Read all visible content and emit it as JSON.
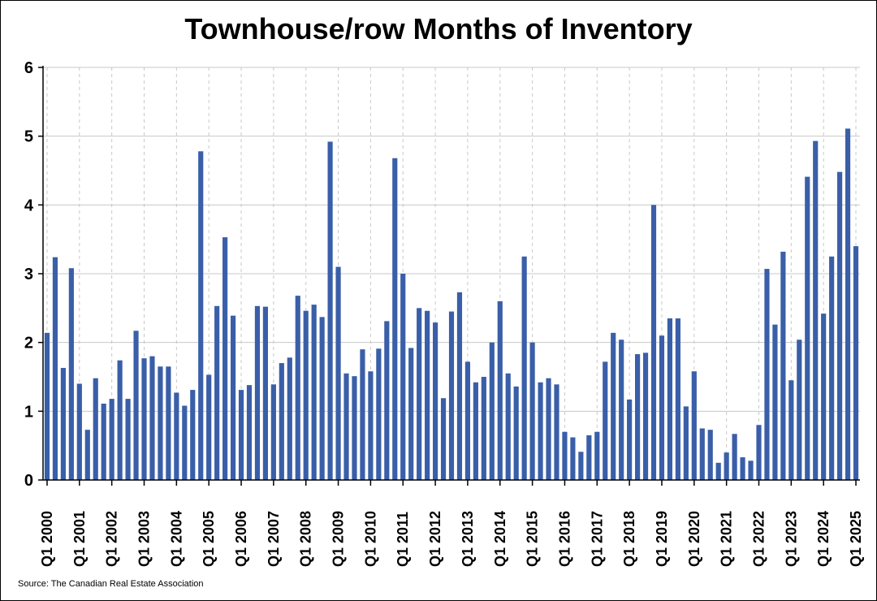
{
  "chart_data": {
    "type": "bar",
    "title": "Townhouse/row Months of Inventory",
    "source": "Source: The Canadian Real Estate Association",
    "xlabel": "",
    "ylabel": "",
    "ylim": [
      0,
      6
    ],
    "yticks": [
      0,
      1,
      2,
      3,
      4,
      5,
      6
    ],
    "grid": true,
    "bar_color": "#3A5FA8",
    "x_tick_labels": [
      "Q1 2000",
      "Q1 2001",
      "Q1 2002",
      "Q1 2003",
      "Q1 2004",
      "Q1 2005",
      "Q1 2006",
      "Q1 2007",
      "Q1 2008",
      "Q1 2009",
      "Q1 2010",
      "Q1 2011",
      "Q1 2012",
      "Q1 2013",
      "Q1 2014",
      "Q1 2015",
      "Q1 2016",
      "Q1 2017",
      "Q1 2018",
      "Q1 2019",
      "Q1 2020",
      "Q1 2021",
      "Q1 2022",
      "Q1 2023",
      "Q1 2024",
      "Q1 2025"
    ],
    "categories": [
      "Q1 2000",
      "Q2 2000",
      "Q3 2000",
      "Q4 2000",
      "Q1 2001",
      "Q2 2001",
      "Q3 2001",
      "Q4 2001",
      "Q1 2002",
      "Q2 2002",
      "Q3 2002",
      "Q4 2002",
      "Q1 2003",
      "Q2 2003",
      "Q3 2003",
      "Q4 2003",
      "Q1 2004",
      "Q2 2004",
      "Q3 2004",
      "Q4 2004",
      "Q1 2005",
      "Q2 2005",
      "Q3 2005",
      "Q4 2005",
      "Q1 2006",
      "Q2 2006",
      "Q3 2006",
      "Q4 2006",
      "Q1 2007",
      "Q2 2007",
      "Q3 2007",
      "Q4 2007",
      "Q1 2008",
      "Q2 2008",
      "Q3 2008",
      "Q4 2008",
      "Q1 2009",
      "Q2 2009",
      "Q3 2009",
      "Q4 2009",
      "Q1 2010",
      "Q2 2010",
      "Q3 2010",
      "Q4 2010",
      "Q1 2011",
      "Q2 2011",
      "Q3 2011",
      "Q4 2011",
      "Q1 2012",
      "Q2 2012",
      "Q3 2012",
      "Q4 2012",
      "Q1 2013",
      "Q2 2013",
      "Q3 2013",
      "Q4 2013",
      "Q1 2014",
      "Q2 2014",
      "Q3 2014",
      "Q4 2014",
      "Q1 2015",
      "Q2 2015",
      "Q3 2015",
      "Q4 2015",
      "Q1 2016",
      "Q2 2016",
      "Q3 2016",
      "Q4 2016",
      "Q1 2017",
      "Q2 2017",
      "Q3 2017",
      "Q4 2017",
      "Q1 2018",
      "Q2 2018",
      "Q3 2018",
      "Q4 2018",
      "Q1 2019",
      "Q2 2019",
      "Q3 2019",
      "Q4 2019",
      "Q1 2020",
      "Q2 2020",
      "Q3 2020",
      "Q4 2020",
      "Q1 2021",
      "Q2 2021",
      "Q3 2021",
      "Q4 2021",
      "Q1 2022",
      "Q2 2022",
      "Q3 2022",
      "Q4 2022",
      "Q1 2023",
      "Q2 2023",
      "Q3 2023",
      "Q4 2023",
      "Q1 2024",
      "Q2 2024",
      "Q3 2024",
      "Q4 2024",
      "Q1 2025"
    ],
    "values": [
      2.14,
      3.24,
      1.63,
      3.08,
      1.4,
      0.73,
      1.48,
      1.11,
      1.18,
      1.74,
      1.18,
      2.17,
      1.77,
      1.8,
      1.65,
      1.65,
      1.27,
      1.08,
      1.31,
      4.78,
      1.53,
      2.53,
      3.53,
      2.39,
      1.31,
      1.38,
      2.53,
      2.52,
      1.39,
      1.7,
      1.78,
      2.68,
      2.46,
      2.55,
      2.37,
      4.92,
      3.1,
      1.55,
      1.51,
      1.9,
      1.58,
      1.91,
      2.31,
      4.68,
      3.0,
      1.92,
      2.5,
      2.46,
      2.29,
      1.19,
      2.45,
      2.73,
      1.72,
      1.42,
      1.5,
      2.0,
      2.6,
      1.55,
      1.36,
      3.25,
      2.0,
      1.42,
      1.48,
      1.39,
      0.7,
      0.62,
      0.41,
      0.65,
      0.7,
      1.72,
      2.14,
      2.04,
      1.17,
      1.83,
      1.85,
      4.0,
      2.1,
      2.35,
      2.35,
      1.07,
      1.58,
      0.75,
      0.73,
      0.25,
      0.4,
      0.67,
      0.33,
      0.28,
      0.8,
      3.07,
      2.26,
      3.32,
      1.45,
      2.04,
      4.41,
      4.93,
      2.42,
      3.25,
      4.48,
      5.11,
      3.4
    ]
  }
}
